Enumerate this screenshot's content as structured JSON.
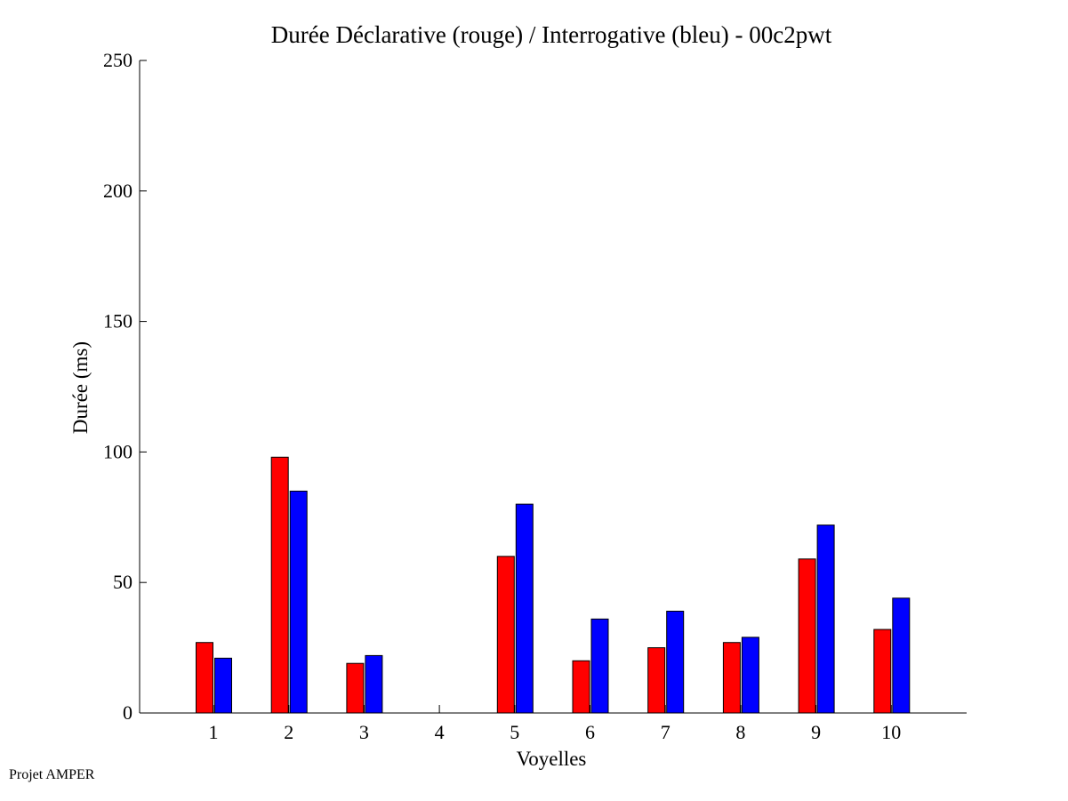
{
  "chart_data": {
    "type": "bar",
    "title": "Durée Déclarative (rouge) / Interrogative (bleu) - 00c2pwt",
    "xlabel": "Voyelles",
    "ylabel": "Durée (ms)",
    "ylim": [
      0,
      250
    ],
    "yticks": [
      0,
      50,
      100,
      150,
      200,
      250
    ],
    "categories": [
      "1",
      "2",
      "3",
      "4",
      "5",
      "6",
      "7",
      "8",
      "9",
      "10"
    ],
    "series": [
      {
        "color": "#ff0000",
        "values": [
          27,
          98,
          19,
          0,
          60,
          20,
          25,
          27,
          59,
          32
        ]
      },
      {
        "color": "#0000ff",
        "values": [
          21,
          85,
          22,
          0,
          80,
          36,
          39,
          29,
          72,
          44
        ]
      }
    ],
    "grid": false,
    "legend": "none"
  },
  "footer": {
    "note": "Projet AMPER"
  }
}
